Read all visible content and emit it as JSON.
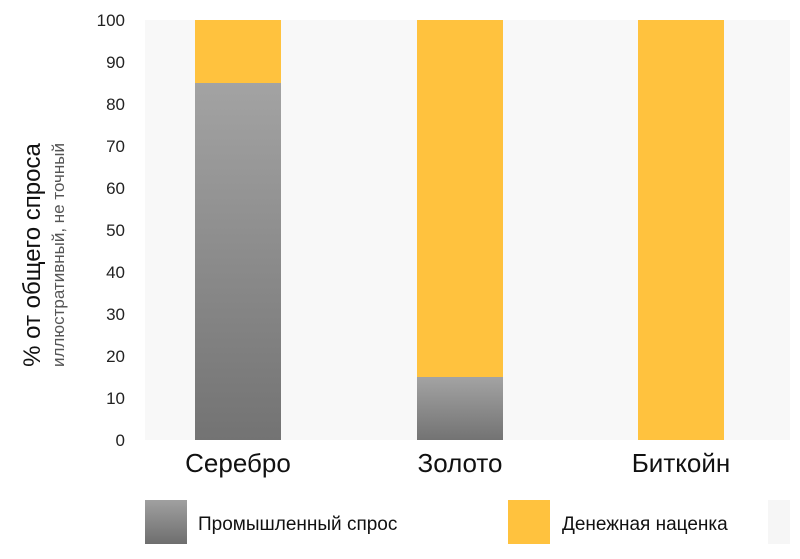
{
  "chart_data": {
    "type": "bar",
    "stacked": true,
    "categories": [
      "Серебро",
      "Золото",
      "Биткойн"
    ],
    "series": [
      {
        "name": "Промышленный спрос",
        "values": [
          85,
          15,
          0
        ],
        "color": "#808080"
      },
      {
        "name": "Денежная наценка",
        "values": [
          15,
          85,
          100
        ],
        "color": "#ffc23e"
      }
    ],
    "ylabel": "% от общего спроса",
    "ylabel_sub": "иллюстративный, не точный",
    "ylim": [
      0,
      100
    ],
    "yticks": [
      0,
      10,
      20,
      30,
      40,
      50,
      60,
      70,
      80,
      90,
      100
    ],
    "grid": false,
    "legend": "bottom"
  }
}
